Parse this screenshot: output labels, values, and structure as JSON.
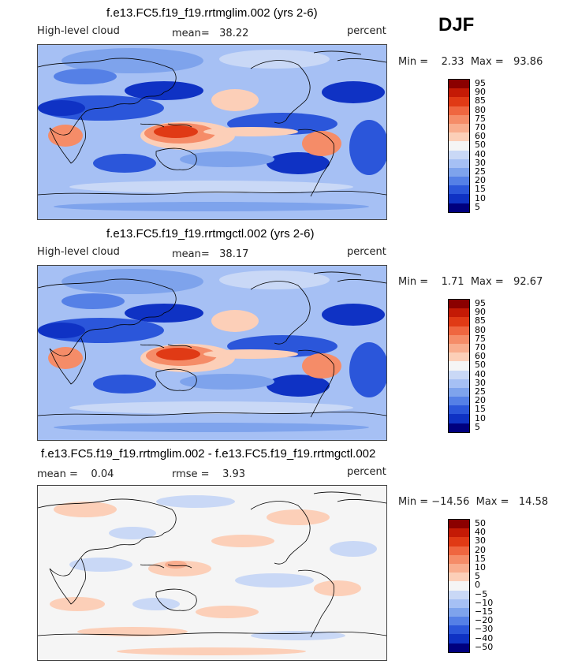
{
  "season": "DJF",
  "panels": [
    {
      "id": "p1",
      "title": "f.e13.FC5.f19_f19.rrtmglim.002 (yrs 2-6)",
      "left_label": "High-level cloud",
      "stat1": "mean=   38.22",
      "units": "percent",
      "range": "Min =    2.33  Max =   93.86",
      "colorbar": {
        "labels": [
          "95",
          "90",
          "85",
          "80",
          "75",
          "70",
          "60",
          "50",
          "40",
          "30",
          "25",
          "20",
          "15",
          "10",
          "5"
        ],
        "colors": [
          "#8b0000",
          "#c41a05",
          "#e03a15",
          "#ef6640",
          "#f58c68",
          "#f9ad8e",
          "#fccfb8",
          "#f5f5f5",
          "#c9d8f6",
          "#a6c0f4",
          "#7ea3ec",
          "#5580e6",
          "#2b56da",
          "#0f32c4",
          "#00007f"
        ]
      }
    },
    {
      "id": "p2",
      "title": "f.e13.FC5.f19_f19.rrtmgctl.002 (yrs 2-6)",
      "left_label": "High-level cloud",
      "stat1": "mean=   38.17",
      "units": "percent",
      "range": "Min =    1.71  Max =   92.67",
      "colorbar": {
        "labels": [
          "95",
          "90",
          "85",
          "80",
          "75",
          "70",
          "60",
          "50",
          "40",
          "30",
          "25",
          "20",
          "15",
          "10",
          "5"
        ],
        "colors": [
          "#8b0000",
          "#c41a05",
          "#e03a15",
          "#ef6640",
          "#f58c68",
          "#f9ad8e",
          "#fccfb8",
          "#f5f5f5",
          "#c9d8f6",
          "#a6c0f4",
          "#7ea3ec",
          "#5580e6",
          "#2b56da",
          "#0f32c4",
          "#00007f"
        ]
      }
    },
    {
      "id": "p3",
      "title": "f.e13.FC5.f19_f19.rrtmglim.002 - f.e13.FC5.f19_f19.rrtmgctl.002",
      "stat1": "mean =    0.04",
      "stat2": "rmse =    3.93",
      "units": "percent",
      "range": "Min = −14.56  Max =   14.58",
      "colorbar": {
        "labels": [
          "50",
          "40",
          "30",
          "20",
          "15",
          "10",
          "5",
          "0",
          "−5",
          "−10",
          "−15",
          "−20",
          "−30",
          "−40",
          "−50"
        ],
        "colors": [
          "#8b0000",
          "#c41a05",
          "#e03a15",
          "#ef6640",
          "#f58c68",
          "#f9ad8e",
          "#fccfb8",
          "#f5f5f5",
          "#c9d8f6",
          "#a6c0f4",
          "#7ea3ec",
          "#5580e6",
          "#2b56da",
          "#0f32c4",
          "#00007f"
        ]
      }
    }
  ]
}
